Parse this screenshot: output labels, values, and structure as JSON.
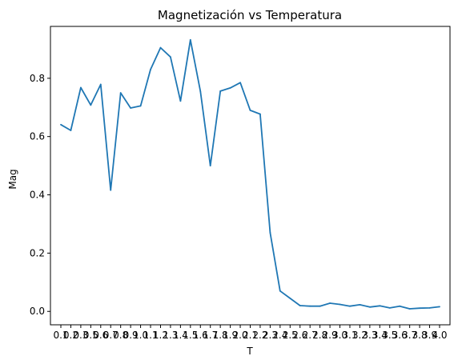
{
  "chart_data": {
    "type": "line",
    "title": "Magnetización vs Temperatura",
    "xlabel": "T",
    "ylabel": "Mag",
    "x": [
      "0.1",
      "0.2",
      "0.3",
      "0.5",
      "0.6",
      "0.7",
      "0.8",
      "0.9",
      "1.0",
      "1.1",
      "1.2",
      "1.3",
      "1.4",
      "1.5",
      "1.6",
      "1.7",
      "1.8",
      "1.9",
      "2.0",
      "2.1",
      "2.2",
      "2.3",
      "2.4",
      "2.5",
      "2.6",
      "2.7",
      "2.8",
      "2.9",
      "3.0",
      "3.1",
      "3.2",
      "3.3",
      "3.4",
      "3.5",
      "3.6",
      "3.7",
      "3.8",
      "3.9",
      "4.0"
    ],
    "series": [
      {
        "color": "#1f77b4",
        "values": [
          0.641,
          0.621,
          0.768,
          0.708,
          0.779,
          0.416,
          0.75,
          0.698,
          0.705,
          0.83,
          0.905,
          0.873,
          0.722,
          0.932,
          0.755,
          0.5,
          0.756,
          0.767,
          0.785,
          0.69,
          0.677,
          0.27,
          0.07,
          0.045,
          0.02,
          0.018,
          0.018,
          0.028,
          0.024,
          0.018,
          0.023,
          0.015,
          0.019,
          0.012,
          0.018,
          0.009,
          0.011,
          0.012,
          0.016
        ]
      }
    ],
    "yticks": [
      0.0,
      0.2,
      0.4,
      0.6,
      0.8
    ],
    "yticklabels": [
      "0.0",
      "0.2",
      "0.4",
      "0.6",
      "0.8"
    ],
    "ylim": [
      -0.046,
      0.978
    ],
    "grid": false
  }
}
